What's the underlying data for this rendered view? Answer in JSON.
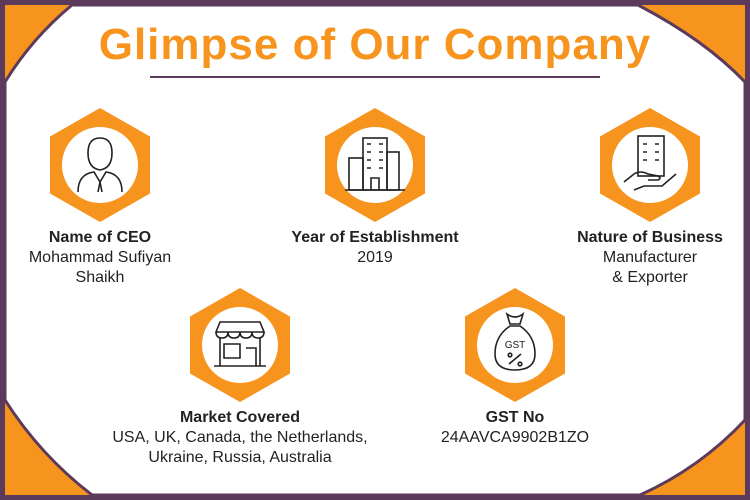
{
  "title": "Glimpse of Our Company",
  "colors": {
    "accent": "#f7941d",
    "border": "#5c3a5c"
  },
  "items": [
    {
      "icon": "ceo-person-icon",
      "label": "Name of CEO",
      "value": "Mohammad Sufiyan\nShaikh"
    },
    {
      "icon": "buildings-icon",
      "label": "Year of Establishment",
      "value": "2019"
    },
    {
      "icon": "building-in-hand-icon",
      "label": "Nature of Business",
      "value": "Manufacturer\n& Exporter"
    },
    {
      "icon": "shop-icon",
      "label": "Market Covered",
      "value": "USA, UK, Canada, the Netherlands,\nUkraine, Russia, Australia"
    },
    {
      "icon": "gst-bag-icon",
      "label": "GST No",
      "value": "24AAVCA9902B1ZO",
      "icon_text": "GST"
    }
  ]
}
